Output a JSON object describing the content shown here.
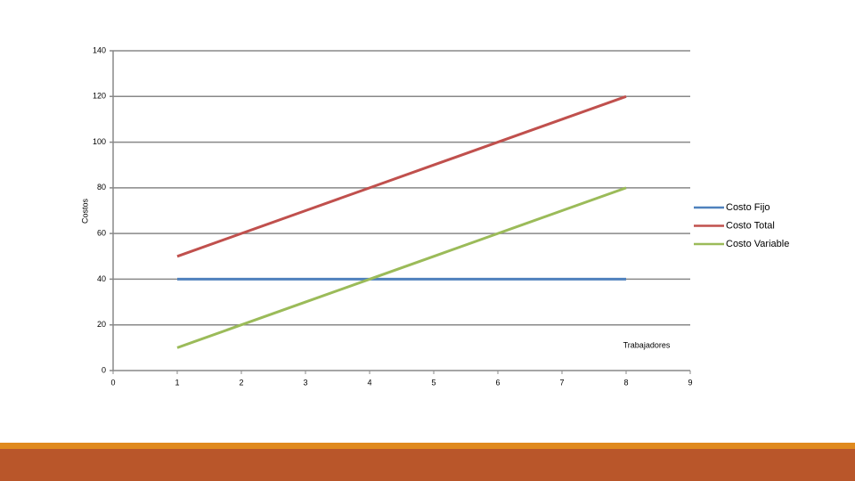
{
  "chart_data": {
    "type": "line",
    "x_label": "Trabajadores",
    "y_label": "Costos",
    "x": [
      1,
      2,
      3,
      4,
      5,
      6,
      7,
      8
    ],
    "series": [
      {
        "name": "Costo Fijo",
        "color": "#4f81bd",
        "values": [
          40,
          40,
          40,
          40,
          40,
          40,
          40,
          40
        ]
      },
      {
        "name": "Costo Total",
        "color": "#c0504d",
        "values": [
          50,
          60,
          70,
          80,
          90,
          100,
          110,
          120
        ]
      },
      {
        "name": "Costo Variable",
        "color": "#9bbb59",
        "values": [
          10,
          20,
          30,
          40,
          50,
          60,
          70,
          80
        ]
      }
    ],
    "xlim": [
      0,
      9
    ],
    "xticks": [
      0,
      1,
      2,
      3,
      4,
      5,
      6,
      7,
      8,
      9
    ],
    "ylim": [
      0,
      140
    ],
    "yticks": [
      0,
      20,
      40,
      60,
      80,
      100,
      120,
      140
    ],
    "grid": true,
    "legend": "right"
  }
}
